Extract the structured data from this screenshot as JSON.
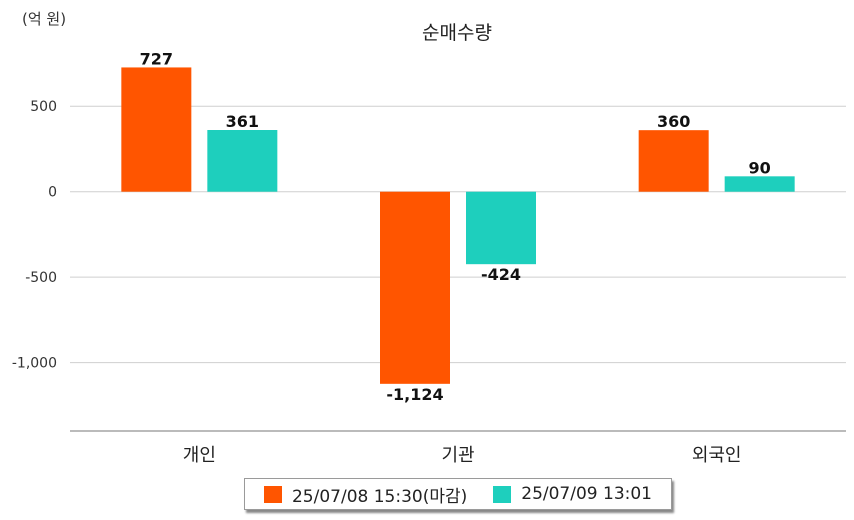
{
  "chart_data": {
    "type": "bar",
    "title": "순매수량",
    "unit_label": "(억 원)",
    "categories": [
      "개인",
      "기관",
      "외국인"
    ],
    "series": [
      {
        "name": "25/07/08 15:30(마감)",
        "color": "#ff5500",
        "values": [
          727,
          -1124,
          360
        ],
        "value_labels": [
          "727",
          "-1,124",
          "360"
        ]
      },
      {
        "name": "25/07/09 13:01",
        "color": "#1ecfbd",
        "values": [
          361,
          -424,
          90
        ],
        "value_labels": [
          "361",
          "-424",
          "90"
        ]
      }
    ],
    "yticks": [
      500,
      0,
      -500,
      -1000
    ],
    "ytick_labels": [
      "500",
      "0",
      "-500",
      "-1,000"
    ],
    "ylim": [
      -1400,
      870
    ],
    "grid": true,
    "legend_position": "bottom"
  }
}
